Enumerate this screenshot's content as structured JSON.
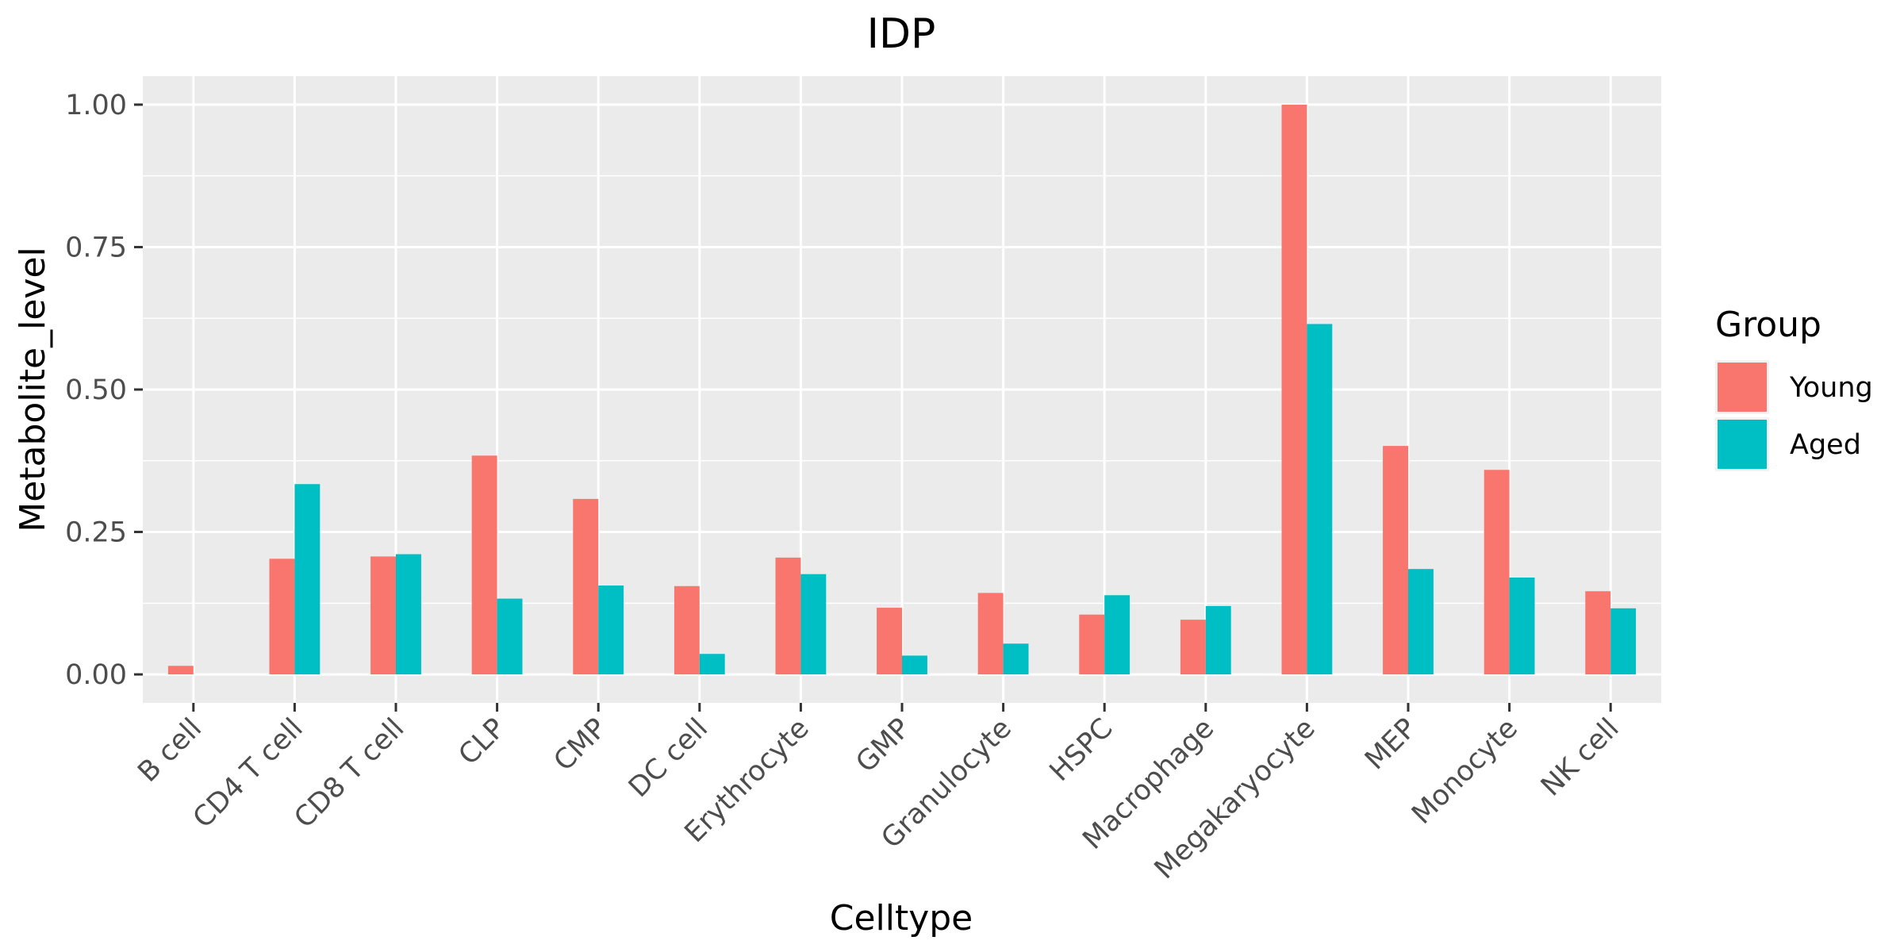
{
  "chart_data": {
    "type": "bar",
    "title": "IDP",
    "xlabel": "Celltype",
    "ylabel": "Metabolite_level",
    "categories": [
      "B cell",
      "CD4 T cell",
      "CD8 T cell",
      "CLP",
      "CMP",
      "DC cell",
      "Erythrocyte",
      "GMP",
      "Granulocyte",
      "HSPC",
      "Macrophage",
      "Megakaryocyte",
      "MEP",
      "Monocyte",
      "NK cell"
    ],
    "series": [
      {
        "name": "Young",
        "color": "#F8766D",
        "values": [
          0.015,
          0.203,
          0.207,
          0.384,
          0.308,
          0.155,
          0.205,
          0.117,
          0.143,
          0.105,
          0.096,
          1.0,
          0.401,
          0.359,
          0.146
        ]
      },
      {
        "name": "Aged",
        "color": "#00BFC4",
        "values": [
          null,
          0.334,
          0.211,
          0.133,
          0.156,
          0.036,
          0.176,
          0.033,
          0.054,
          0.139,
          0.12,
          0.615,
          0.185,
          0.17,
          0.116
        ]
      }
    ],
    "ylim": [
      -0.05,
      1.05
    ],
    "yticks": [
      "0.00",
      "0.25",
      "0.50",
      "0.75",
      "1.00"
    ],
    "ytick_values": [
      0,
      0.25,
      0.5,
      0.75,
      1.0
    ],
    "grid": true,
    "panel_background": "#EBEBEB",
    "legend": {
      "title": "Group",
      "position": "right",
      "entries": [
        "Young",
        "Aged"
      ]
    }
  }
}
